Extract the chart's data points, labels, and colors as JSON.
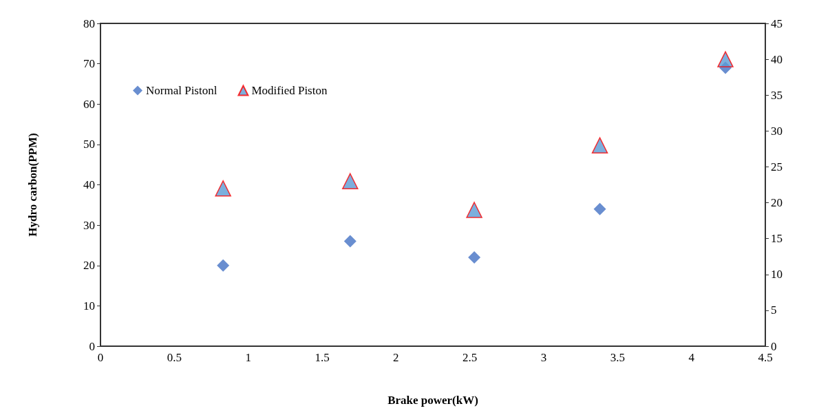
{
  "chart_data": {
    "type": "scatter",
    "xlabel": "Brake power(kW)",
    "ylabel": "Hydro carbon(PPM)",
    "x": [
      0.83,
      1.69,
      2.53,
      3.38,
      4.23
    ],
    "series": [
      {
        "name": "Normal Pistonl",
        "color": "#4472c4",
        "marker": "diamond",
        "values": [
          20,
          26,
          22,
          34,
          69
        ]
      },
      {
        "name": "Modified Piston",
        "color": "#5b9bd5",
        "marker": "triangle",
        "axis": "y2",
        "values": [
          22,
          23,
          19,
          28,
          40
        ]
      }
    ],
    "xlim": [
      0,
      4.5
    ],
    "xticks": [
      0,
      0.5,
      1,
      1.5,
      2,
      2.5,
      3,
      3.5,
      4,
      4.5
    ],
    "ylim": [
      0,
      80
    ],
    "yticks": [
      0,
      10,
      20,
      30,
      40,
      50,
      60,
      70,
      80
    ],
    "y2lim": [
      0,
      45
    ],
    "y2ticks": [
      0,
      5,
      10,
      15,
      20,
      25,
      30,
      35,
      40,
      45
    ],
    "grid": false,
    "legend": "top left"
  }
}
